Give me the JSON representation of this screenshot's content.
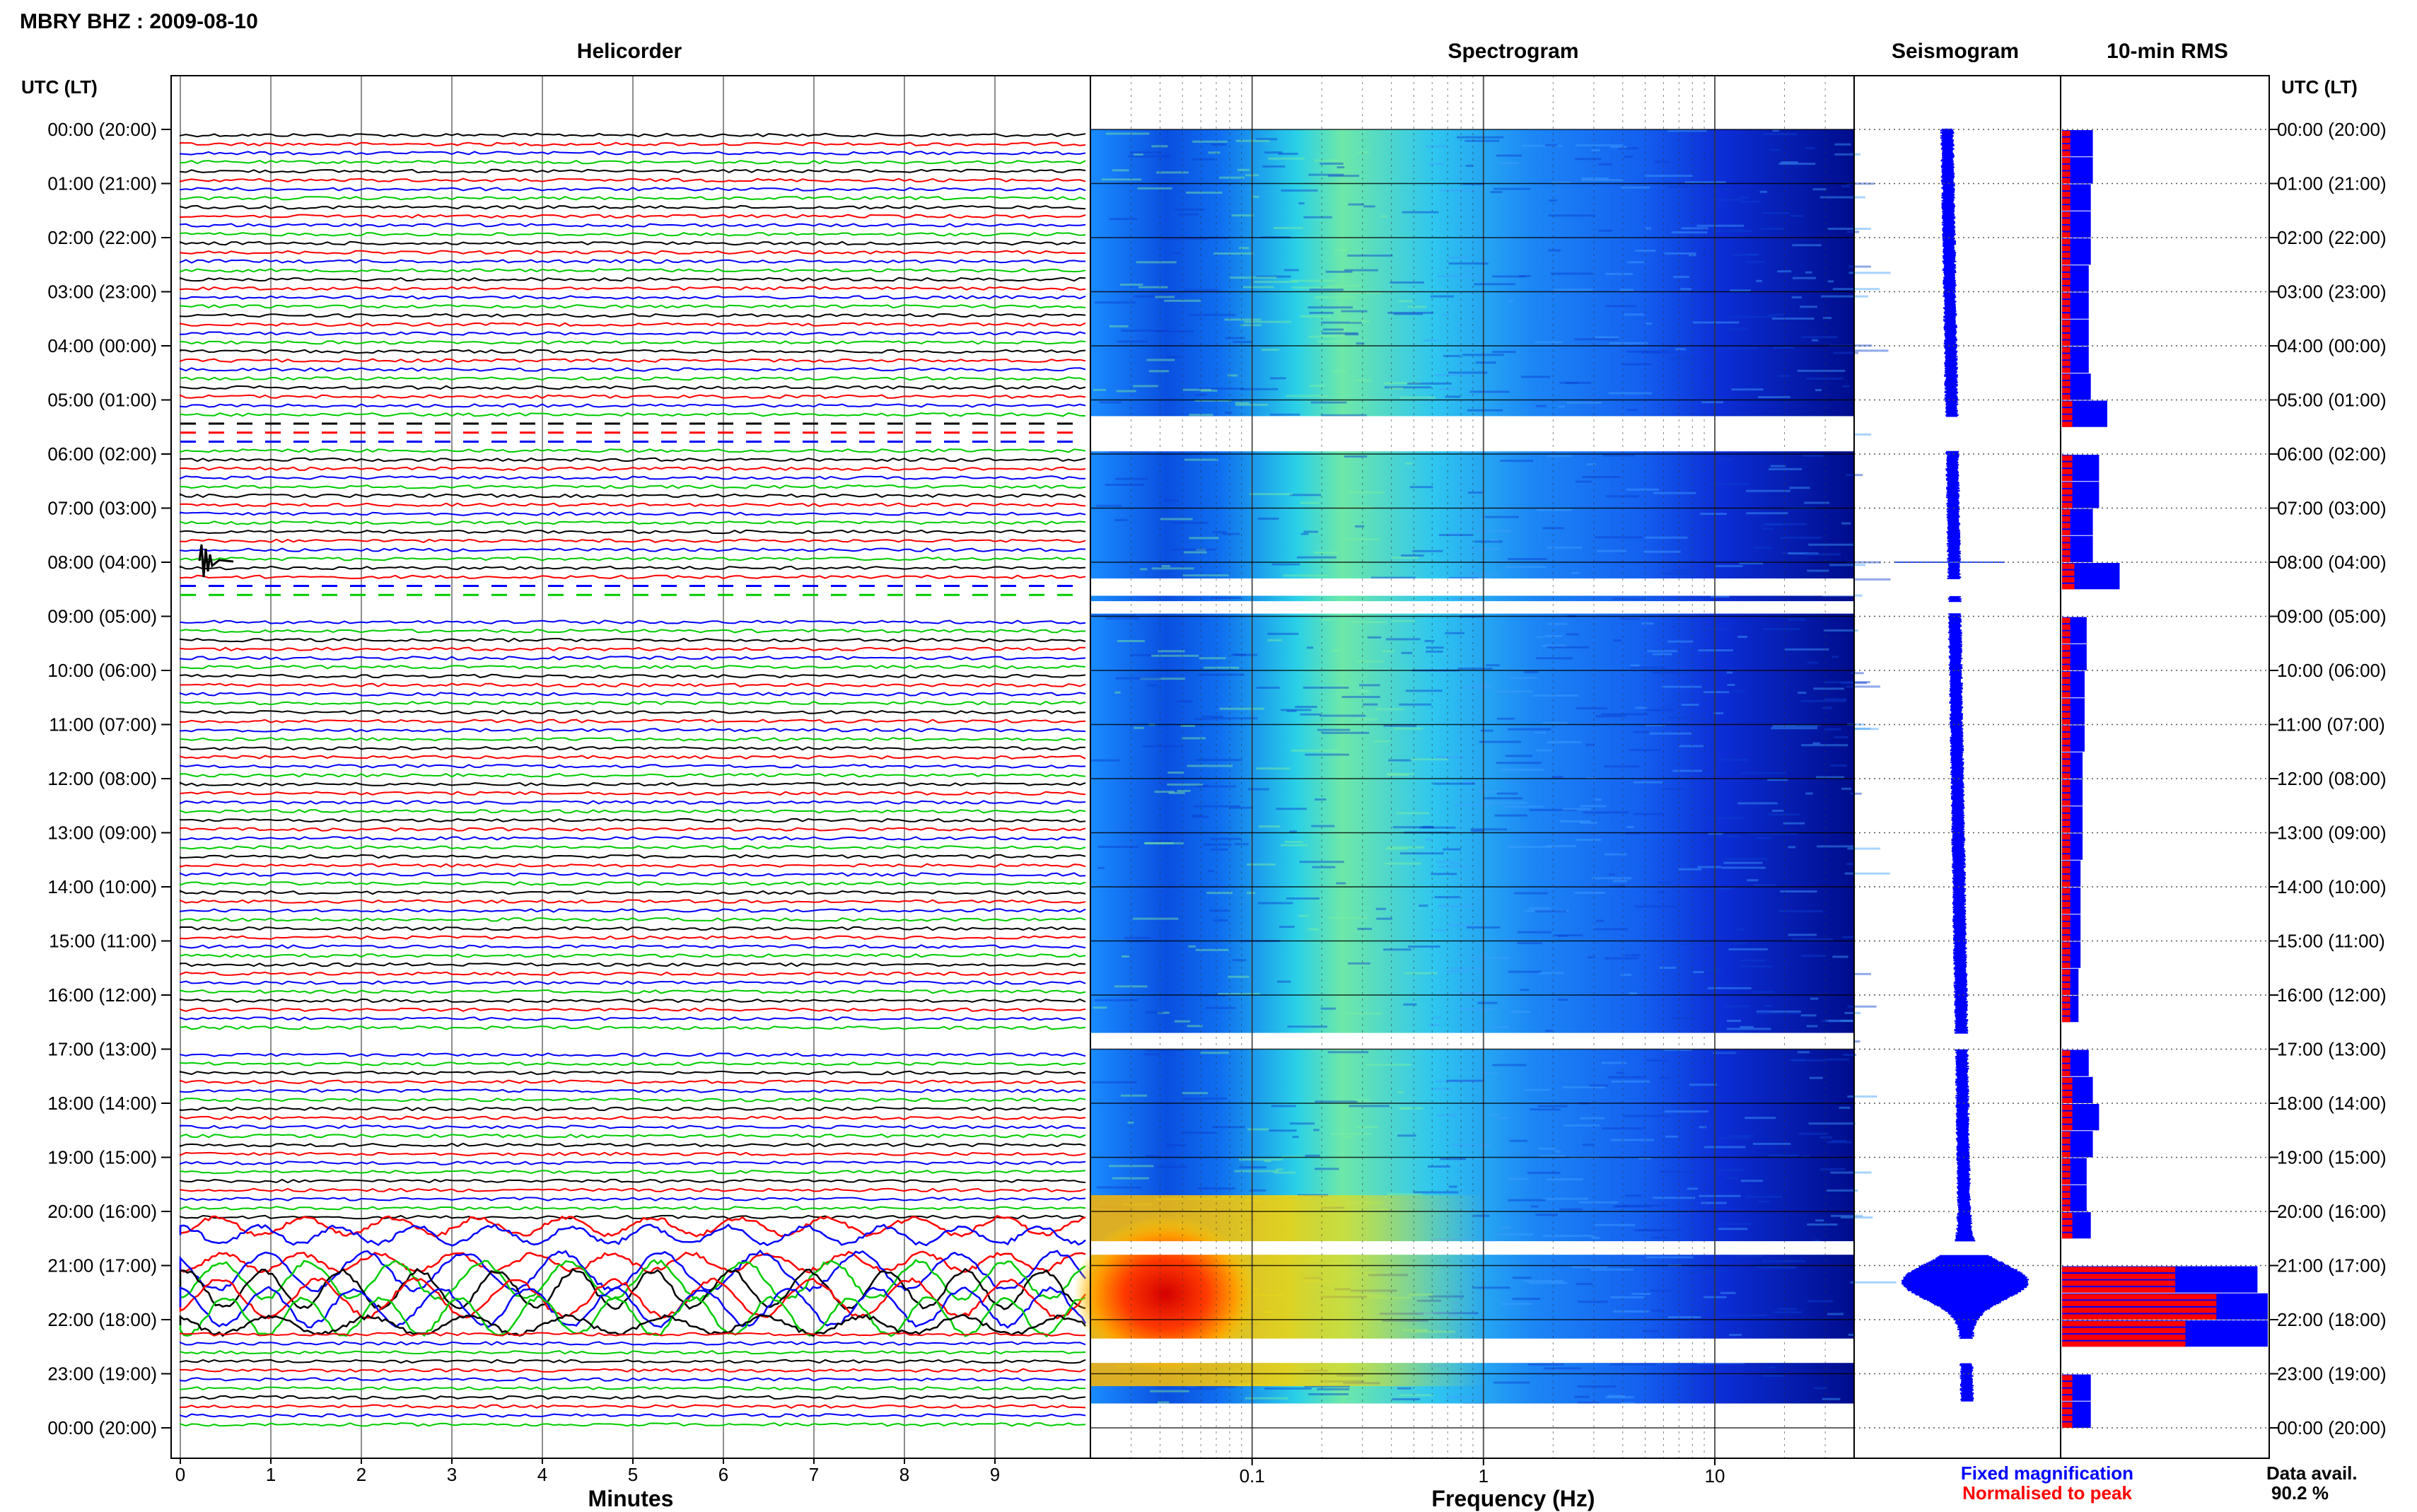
{
  "station_title": "MBRY BHZ : 2009-08-10",
  "panels": {
    "helicorder": "Helicorder",
    "spectrogram": "Spectrogram",
    "seismogram": "Seismogram",
    "rms": "10-min RMS"
  },
  "time_axis_header": "UTC (LT)",
  "time_labels": [
    "00:00 (20:00)",
    "01:00 (21:00)",
    "02:00 (22:00)",
    "03:00 (23:00)",
    "04:00 (00:00)",
    "05:00 (01:00)",
    "06:00 (02:00)",
    "07:00 (03:00)",
    "08:00 (04:00)",
    "09:00 (05:00)",
    "10:00 (06:00)",
    "11:00 (07:00)",
    "12:00 (08:00)",
    "13:00 (09:00)",
    "14:00 (10:00)",
    "15:00 (11:00)",
    "16:00 (12:00)",
    "17:00 (13:00)",
    "18:00 (14:00)",
    "19:00 (15:00)",
    "20:00 (16:00)",
    "21:00 (17:00)",
    "22:00 (18:00)",
    "23:00 (19:00)",
    "00:00 (20:00)"
  ],
  "helicorder_xlabel": "Minutes",
  "helicorder_ticks": [
    "0",
    "1",
    "2",
    "3",
    "4",
    "5",
    "6",
    "7",
    "8",
    "9"
  ],
  "spectrogram_xlabel": "Frequency (Hz)",
  "spectrogram_ticks": [
    "0.1",
    "1",
    "10"
  ],
  "legend": {
    "fixed": "Fixed magnification",
    "normalised": "Normalised to peak",
    "fixed_color": "#0000ff",
    "normalised_color": "#ff0000"
  },
  "data_avail_label": "Data avail.",
  "data_avail_value": "90.2 %",
  "trace_colors": [
    "#000000",
    "#ff0000",
    "#0000ff",
    "#00cc00"
  ],
  "chart_data": [
    {
      "type": "line",
      "title": "Helicorder",
      "xlabel": "Minutes",
      "xlim": [
        0,
        10
      ],
      "y_unit": "hour (UTC)",
      "ylim": [
        0,
        24
      ],
      "rows_per_hour": 6,
      "gaps_hours": [
        [
          5.3,
          5.85
        ],
        [
          8.3,
          9.0
        ],
        [
          16.7,
          17.0
        ],
        [
          20.55,
          20.8
        ]
      ],
      "event_windows_hours": [
        [
          8.0,
          8.1
        ],
        [
          20.05,
          22.1
        ]
      ]
    },
    {
      "type": "heatmap",
      "title": "Spectrogram",
      "xlabel": "Frequency (Hz)",
      "x_scale": "log",
      "xlim": [
        0.02,
        40
      ],
      "ylim": [
        0,
        24
      ],
      "gaps_hours": [
        [
          5.3,
          5.95
        ],
        [
          8.3,
          8.62
        ],
        [
          8.72,
          8.95
        ],
        [
          16.7,
          17.0
        ],
        [
          20.55,
          20.8
        ],
        [
          22.35,
          22.8
        ]
      ],
      "high_energy": {
        "freq_hz": [
          0.03,
          0.09
        ],
        "hours": [
          20.3,
          22.1
        ]
      }
    },
    {
      "type": "line",
      "title": "Seismogram",
      "ylim": [
        0,
        24
      ],
      "spikes_hours": [
        8.0
      ],
      "envelope_peak_hours": [
        21.2,
        22.0
      ]
    },
    {
      "type": "bar",
      "title": "10-min RMS",
      "orientation": "horizontal",
      "categories_hours": [
        0.0,
        0.5,
        1.0,
        1.5,
        2.0,
        2.5,
        3.0,
        3.5,
        4.0,
        4.5,
        5.0,
        5.5,
        6.0,
        6.5,
        7.0,
        7.5,
        8.0,
        8.5,
        9.0,
        9.5,
        10.0,
        10.5,
        11.0,
        11.5,
        12.0,
        12.5,
        13.0,
        13.5,
        14.0,
        14.5,
        15.0,
        15.5,
        16.0,
        16.5,
        17.0,
        17.5,
        18.0,
        18.5,
        19.0,
        19.5,
        20.0,
        20.5,
        21.0,
        21.5,
        22.0,
        22.5,
        23.0,
        23.5
      ],
      "series": [
        {
          "name": "Fixed magnification",
          "values": [
            0.15,
            0.15,
            0.14,
            0.14,
            0.14,
            0.13,
            0.13,
            0.13,
            0.13,
            0.14,
            0.22,
            0.0,
            0.18,
            0.18,
            0.15,
            0.15,
            0.28,
            0.0,
            0.12,
            0.12,
            0.11,
            0.11,
            0.11,
            0.1,
            0.1,
            0.1,
            0.1,
            0.09,
            0.09,
            0.09,
            0.09,
            0.08,
            0.08,
            0.0,
            0.13,
            0.15,
            0.18,
            0.15,
            0.12,
            0.12,
            0.14,
            0.0,
            0.95,
            1.0,
            1.0,
            0.0,
            0.14,
            0.14
          ]
        },
        {
          "name": "Normalised to peak",
          "values": [
            0.04,
            0.04,
            0.04,
            0.04,
            0.04,
            0.04,
            0.04,
            0.04,
            0.04,
            0.04,
            0.05,
            0.0,
            0.05,
            0.05,
            0.04,
            0.04,
            0.06,
            0.0,
            0.04,
            0.04,
            0.04,
            0.04,
            0.04,
            0.04,
            0.04,
            0.04,
            0.04,
            0.04,
            0.04,
            0.04,
            0.04,
            0.04,
            0.04,
            0.0,
            0.04,
            0.05,
            0.05,
            0.04,
            0.04,
            0.04,
            0.05,
            0.0,
            0.55,
            0.75,
            0.6,
            0.0,
            0.05,
            0.05
          ]
        }
      ]
    }
  ]
}
